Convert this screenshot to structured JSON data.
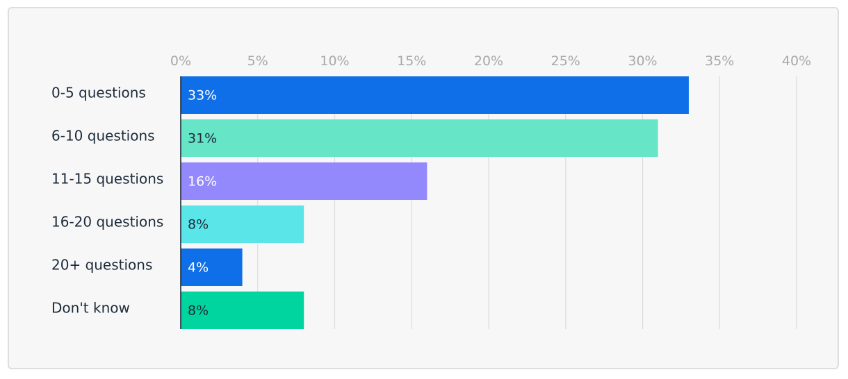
{
  "chart_data": {
    "type": "bar",
    "orientation": "horizontal",
    "categories": [
      "0-5 questions",
      "6-10 questions",
      "11-15 questions",
      "16-20 questions",
      "20+ questions",
      "Don't know"
    ],
    "values": [
      33,
      31,
      16,
      8,
      4,
      8
    ],
    "value_labels": [
      "33%",
      "31%",
      "16%",
      "8%",
      "4%",
      "8%"
    ],
    "bar_colors": [
      "#0f6fe8",
      "#66e5c7",
      "#9388fc",
      "#5ae6e9",
      "#0f6fe8",
      "#00d49f"
    ],
    "label_colors": [
      "#ffffff",
      "#1c2a3a",
      "#ffffff",
      "#1c2a3a",
      "#ffffff",
      "#1c2a3a"
    ],
    "x_ticks": [
      "0%",
      "5%",
      "10%",
      "15%",
      "20%",
      "25%",
      "30%",
      "35%",
      "40%"
    ],
    "xlim": [
      0,
      40
    ],
    "grid": true,
    "title": "",
    "xlabel": "",
    "ylabel": ""
  },
  "colors": {
    "card_background": "#f7f7f7",
    "card_border": "#dedede",
    "gridline": "#dcdcdc",
    "axis_line": "#1c2a3a",
    "tick_text": "#a8a8a8",
    "category_text": "#1c2a3a"
  }
}
